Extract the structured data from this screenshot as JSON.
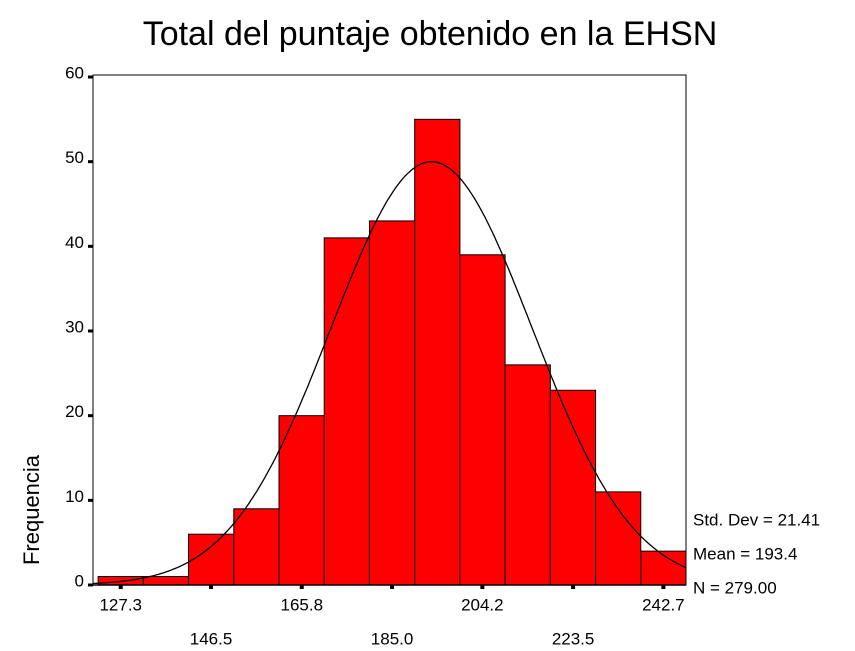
{
  "chart_data": {
    "type": "histogram",
    "title": "Total del puntaje obtenido en la EHSN",
    "y_label": "Frequencia",
    "bins": [
      122.49,
      132.11,
      141.72,
      151.34,
      160.96,
      170.57,
      180.19,
      189.81,
      199.43,
      209.04,
      218.66,
      228.28,
      237.89,
      247.51
    ],
    "values": [
      1,
      1,
      6,
      9,
      20,
      41,
      43,
      55,
      39,
      26,
      23,
      11,
      4
    ],
    "color": "#ff0000",
    "xlim": [
      121.4,
      247.51
    ],
    "xticks": [
      127.3,
      146.5,
      165.8,
      {
        "value": 185,
        "label": "185.0"
      },
      204.2,
      223.5,
      242.7
    ],
    "ylim": [
      0,
      60
    ],
    "yticks": [
      0,
      10,
      20,
      30,
      40,
      50,
      60
    ],
    "normal_curve": {
      "mean": 193.4,
      "std_dev": 21.41,
      "n": 279
    },
    "annotations": [
      "Std. Dev = 21.41",
      "Mean = 193.4",
      "N = 279.00"
    ]
  }
}
